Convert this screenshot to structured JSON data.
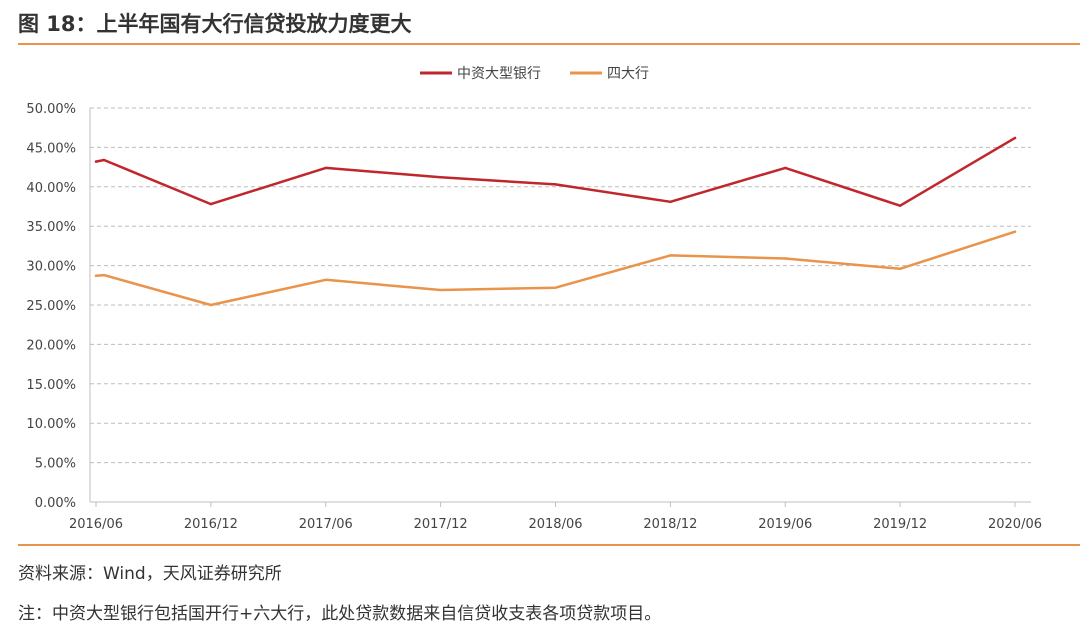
{
  "header": {
    "title": "图 18：上半年国有大行信贷投放力度更大"
  },
  "footer": {
    "source": "资料来源：Wind，天风证券研究所",
    "note": "注：中资大型银行包括国开行+六大行，此处贷款数据来自信贷收支表各项贷款项目。"
  },
  "colors": {
    "accent": "#E8944A",
    "series1": "#C0272D",
    "series2": "#E8944A"
  },
  "chart_data": {
    "type": "line",
    "x": [
      "2016/06",
      "2016/12",
      "2017/06",
      "2017/12",
      "2018/06",
      "2018/12",
      "2019/06",
      "2019/12",
      "2020/06"
    ],
    "ylim": [
      0,
      50
    ],
    "yticks": [
      "0.00%",
      "5.00%",
      "10.00%",
      "15.00%",
      "20.00%",
      "25.00%",
      "30.00%",
      "35.00%",
      "40.00%",
      "45.00%",
      "50.00%"
    ],
    "grid": true,
    "legend_position": "top-center",
    "series": [
      {
        "name": "中资大型银行",
        "color": "#C0272D",
        "points": [
          [
            0,
            43.2
          ],
          [
            0.07,
            43.4
          ],
          [
            1,
            37.8
          ],
          [
            2,
            42.4
          ],
          [
            3,
            41.2
          ],
          [
            4,
            40.3
          ],
          [
            5,
            38.1
          ],
          [
            6,
            42.4
          ],
          [
            7,
            37.6
          ],
          [
            8,
            46.2
          ]
        ]
      },
      {
        "name": "四大行",
        "color": "#E8944A",
        "points": [
          [
            0,
            28.7
          ],
          [
            0.07,
            28.8
          ],
          [
            1,
            25.0
          ],
          [
            2,
            28.2
          ],
          [
            3,
            26.9
          ],
          [
            4,
            27.2
          ],
          [
            5,
            31.3
          ],
          [
            6,
            30.9
          ],
          [
            7,
            29.6
          ],
          [
            8,
            34.3
          ]
        ]
      }
    ]
  }
}
